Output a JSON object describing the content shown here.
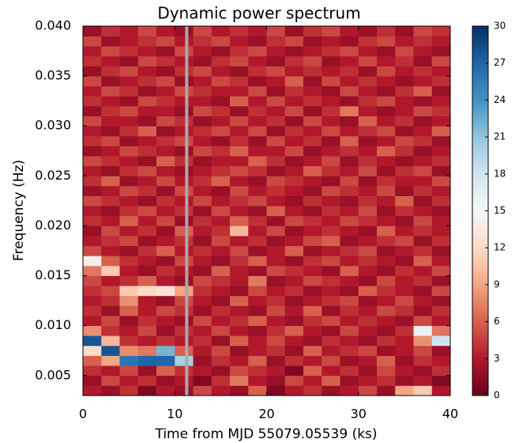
{
  "chart_data": {
    "type": "heatmap",
    "title": "Dynamic power spectrum",
    "xlabel": "Time from MJD 55079.05539 (ks)",
    "ylabel": "Frequency (Hz)",
    "xlim": [
      0,
      40
    ],
    "ylim": [
      0.003,
      0.04
    ],
    "xticks": [
      0,
      10,
      20,
      30,
      40
    ],
    "yticks": [
      0.005,
      {
        "value": 0.01,
        "label": "0.010"
      },
      0.015,
      {
        "value": 0.02,
        "label": "0.020"
      },
      0.025,
      {
        "value": 0.03,
        "label": "0.030"
      },
      0.035,
      {
        "value": 0.04,
        "label": "0.040"
      }
    ],
    "zlim": [
      0,
      30
    ],
    "zticks": [
      0,
      3,
      6,
      9,
      12,
      15,
      18,
      21,
      24,
      27,
      30
    ],
    "colormap": "RdBu",
    "vline": 11.3,
    "vline_color": "#aaaaaa",
    "values": [
      [
        3,
        2,
        4,
        1,
        3,
        2,
        5,
        3,
        2,
        6,
        1,
        3,
        4,
        2,
        3,
        5,
        2,
        9,
        11,
        3
      ],
      [
        2,
        5,
        3,
        4,
        2,
        3,
        1,
        4,
        7,
        3,
        2,
        5,
        3,
        6,
        2,
        3,
        4,
        2,
        3,
        1
      ],
      [
        4,
        3,
        5,
        2,
        6,
        4,
        3,
        2,
        5,
        4,
        3,
        1,
        6,
        3,
        4,
        2,
        5,
        3,
        2,
        4
      ],
      [
        6,
        9,
        26,
        27,
        27,
        20,
        2,
        4,
        3,
        6,
        2,
        4,
        3,
        5,
        2,
        3,
        6,
        2,
        4,
        3
      ],
      [
        12,
        28,
        8,
        7,
        22,
        6,
        3,
        5,
        2,
        3,
        4,
        2,
        6,
        3,
        4,
        5,
        2,
        3,
        5,
        2
      ],
      [
        28,
        10,
        4,
        3,
        4,
        3,
        4,
        2,
        6,
        3,
        5,
        3,
        2,
        4,
        3,
        2,
        4,
        3,
        8,
        18
      ],
      [
        8,
        4,
        3,
        5,
        2,
        4,
        3,
        5,
        3,
        2,
        4,
        6,
        3,
        2,
        5,
        3,
        2,
        4,
        16,
        7
      ],
      [
        3,
        5,
        2,
        4,
        3,
        2,
        5,
        3,
        4,
        6,
        3,
        2,
        4,
        5,
        3,
        4,
        3,
        2,
        5,
        3
      ],
      [
        4,
        2,
        6,
        3,
        5,
        4,
        2,
        4,
        3,
        2,
        5,
        3,
        6,
        2,
        4,
        3,
        5,
        4,
        2,
        4
      ],
      [
        3,
        4,
        8,
        3,
        2,
        5,
        3,
        2,
        6,
        3,
        4,
        2,
        3,
        4,
        5,
        2,
        3,
        5,
        3,
        2
      ],
      [
        4,
        5,
        11,
        12,
        13,
        9,
        4,
        3,
        2,
        5,
        3,
        4,
        2,
        3,
        2,
        6,
        4,
        3,
        2,
        5
      ],
      [
        5,
        3,
        4,
        6,
        3,
        2,
        5,
        4,
        3,
        7,
        2,
        3,
        5,
        4,
        3,
        2,
        5,
        3,
        4,
        2
      ],
      [
        7,
        11,
        3,
        2,
        4,
        3,
        2,
        6,
        3,
        2,
        5,
        4,
        3,
        2,
        6,
        3,
        2,
        4,
        3,
        5
      ],
      [
        14,
        6,
        4,
        3,
        2,
        5,
        3,
        2,
        4,
        6,
        3,
        2,
        4,
        5,
        3,
        4,
        3,
        2,
        6,
        3
      ],
      [
        5,
        3,
        2,
        4,
        6,
        3,
        4,
        3,
        5,
        2,
        3,
        6,
        2,
        3,
        4,
        5,
        2,
        3,
        4,
        2
      ],
      [
        3,
        4,
        5,
        2,
        3,
        4,
        2,
        5,
        3,
        4,
        2,
        3,
        5,
        6,
        2,
        3,
        4,
        5,
        2,
        4
      ],
      [
        2,
        5,
        3,
        4,
        2,
        6,
        3,
        4,
        10,
        3,
        5,
        2,
        3,
        4,
        3,
        2,
        6,
        3,
        4,
        3
      ],
      [
        4,
        3,
        6,
        3,
        5,
        2,
        4,
        3,
        6,
        4,
        2,
        5,
        4,
        3,
        5,
        4,
        3,
        2,
        5,
        3
      ],
      [
        3,
        2,
        4,
        5,
        3,
        4,
        2,
        5,
        3,
        2,
        6,
        3,
        2,
        4,
        3,
        5,
        2,
        4,
        3,
        2
      ],
      [
        5,
        4,
        3,
        2,
        4,
        3,
        5,
        3,
        4,
        5,
        3,
        2,
        4,
        3,
        2,
        4,
        3,
        6,
        2,
        4
      ],
      [
        2,
        3,
        5,
        4,
        2,
        5,
        3,
        2,
        5,
        3,
        4,
        3,
        2,
        5,
        4,
        3,
        5,
        2,
        4,
        3
      ],
      [
        4,
        6,
        2,
        3,
        5,
        3,
        4,
        6,
        3,
        2,
        5,
        4,
        3,
        2,
        5,
        2,
        4,
        3,
        3,
        5
      ],
      [
        3,
        2,
        4,
        5,
        3,
        2,
        3,
        4,
        5,
        4,
        2,
        3,
        6,
        4,
        3,
        5,
        2,
        4,
        5,
        2
      ],
      [
        5,
        4,
        3,
        2,
        6,
        4,
        2,
        3,
        3,
        6,
        4,
        2,
        3,
        5,
        2,
        4,
        3,
        2,
        3,
        4
      ],
      [
        2,
        3,
        5,
        4,
        3,
        2,
        5,
        4,
        6,
        3,
        3,
        5,
        2,
        3,
        4,
        3,
        6,
        4,
        2,
        3
      ],
      [
        4,
        5,
        2,
        3,
        4,
        5,
        3,
        2,
        4,
        2,
        5,
        3,
        4,
        2,
        6,
        2,
        3,
        5,
        4,
        2
      ],
      [
        3,
        2,
        4,
        6,
        2,
        3,
        4,
        5,
        3,
        5,
        2,
        4,
        3,
        5,
        3,
        4,
        5,
        2,
        3,
        6
      ],
      [
        5,
        3,
        3,
        2,
        5,
        4,
        2,
        3,
        5,
        3,
        4,
        2,
        5,
        3,
        2,
        6,
        3,
        4,
        2,
        3
      ],
      [
        2,
        4,
        5,
        3,
        3,
        2,
        5,
        4,
        2,
        4,
        3,
        5,
        2,
        4,
        7,
        3,
        2,
        3,
        5,
        4
      ],
      [
        4,
        3,
        2,
        5,
        4,
        3,
        3,
        2,
        6,
        3,
        5,
        3,
        4,
        3,
        2,
        4,
        5,
        3,
        2,
        3
      ],
      [
        3,
        5,
        4,
        2,
        3,
        5,
        4,
        3,
        3,
        5,
        2,
        4,
        3,
        2,
        5,
        3,
        2,
        4,
        6,
        2
      ],
      [
        5,
        2,
        3,
        4,
        5,
        2,
        3,
        5,
        4,
        2,
        3,
        6,
        2,
        5,
        3,
        4,
        3,
        2,
        3,
        4
      ],
      [
        2,
        4,
        5,
        3,
        2,
        4,
        5,
        3,
        2,
        4,
        5,
        3,
        4,
        3,
        4,
        2,
        5,
        3,
        4,
        3
      ],
      [
        4,
        3,
        2,
        5,
        4,
        3,
        2,
        4,
        5,
        3,
        2,
        4,
        5,
        2,
        3,
        5,
        3,
        4,
        2,
        5
      ],
      [
        3,
        5,
        4,
        3,
        2,
        5,
        3,
        2,
        4,
        5,
        3,
        2,
        3,
        4,
        5,
        3,
        2,
        5,
        3,
        2
      ],
      [
        5,
        2,
        3,
        4,
        5,
        3,
        4,
        5,
        3,
        2,
        4,
        5,
        2,
        3,
        2,
        4,
        5,
        3,
        4,
        3
      ],
      [
        2,
        4,
        3,
        5,
        3,
        2,
        5,
        3,
        4,
        3,
        5,
        2,
        4,
        5,
        3,
        2,
        4,
        2,
        5,
        4
      ]
    ]
  }
}
